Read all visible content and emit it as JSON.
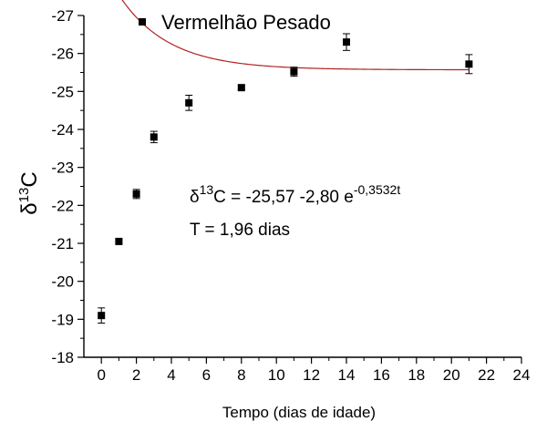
{
  "chart_data": {
    "type": "scatter",
    "xlabel": "Tempo (dias de idade)",
    "ylabel": {
      "main": "δ",
      "sup": "13",
      "tail": "C"
    },
    "xlim": [
      -1,
      24
    ],
    "ylim": [
      -18,
      -27
    ],
    "y_axis_inverted": true,
    "x_ticks": [
      "0",
      "2",
      "4",
      "6",
      "8",
      "10",
      "12",
      "14",
      "16",
      "18",
      "20",
      "22",
      "24"
    ],
    "y_ticks": [
      "-18",
      "-19",
      "-20",
      "-21",
      "-22",
      "-23",
      "-24",
      "-25",
      "-26",
      "-27"
    ],
    "grid": false,
    "legend_position": "top-left",
    "series": [
      {
        "name": "Vermelhão Pesado",
        "marker": "square",
        "color": "#000000",
        "x": [
          0,
          1,
          2,
          3,
          5,
          8,
          11,
          14,
          21
        ],
        "y": [
          -19.1,
          -21.05,
          -22.3,
          -23.8,
          -24.7,
          -25.1,
          -25.52,
          -26.3,
          -25.72
        ],
        "error": [
          0.2,
          0.05,
          0.12,
          0.15,
          0.2,
          0.05,
          0.12,
          0.22,
          0.25
        ]
      }
    ],
    "fit": {
      "color": "#b22222",
      "asymptote": -25.57,
      "amplitude": -2.8,
      "rate": -0.3532
    },
    "annotations": {
      "equation": {
        "prefix": "δ",
        "sup": "13",
        "body": "C = -25,57 -2,80 e",
        "exp": "-0,3532t"
      },
      "t_value": "T = 1,96 dias"
    }
  }
}
